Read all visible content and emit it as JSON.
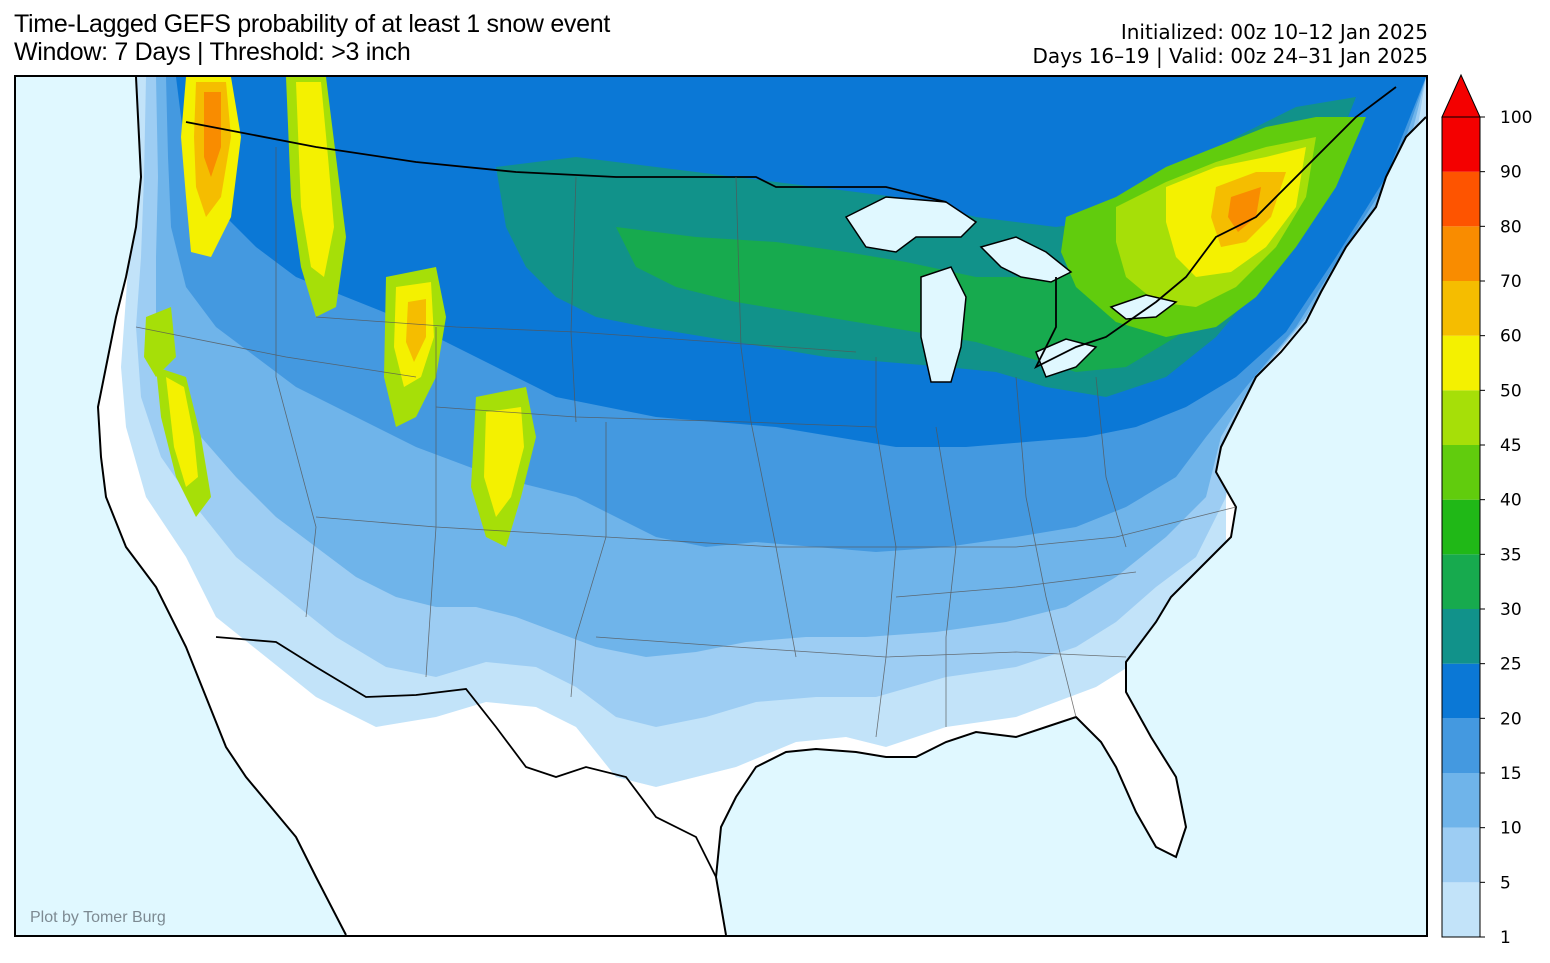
{
  "header": {
    "title_line1": "Time-Lagged GEFS probability of at least 1 snow event",
    "title_line2": "Window: 7 Days | Threshold: >3 inch",
    "initialized": "Initialized: 00z 10–12 Jan 2025",
    "valid": "Days 16–19 | Valid: 00z 24–31 Jan 2025"
  },
  "map": {
    "region": "Contiguous United States",
    "ocean_color": "#e0f8ff",
    "land_color": "#ffffff",
    "credit": "Plot by Tomer Burg"
  },
  "colorbar": {
    "levels": [
      "1",
      "5",
      "10",
      "15",
      "20",
      "25",
      "30",
      "35",
      "40",
      "45",
      "50",
      "60",
      "70",
      "80",
      "90",
      "100"
    ],
    "colors": [
      "#c2e3f9",
      "#9dcdf3",
      "#6fb4ea",
      "#4499e0",
      "#0b78d6",
      "#11928a",
      "#17aa4e",
      "#20b817",
      "#61cc0d",
      "#a6df08",
      "#f4f100",
      "#f5bd00",
      "#f98c00",
      "#fe5400",
      "#f40000"
    ],
    "extend_arrow": "max"
  }
}
